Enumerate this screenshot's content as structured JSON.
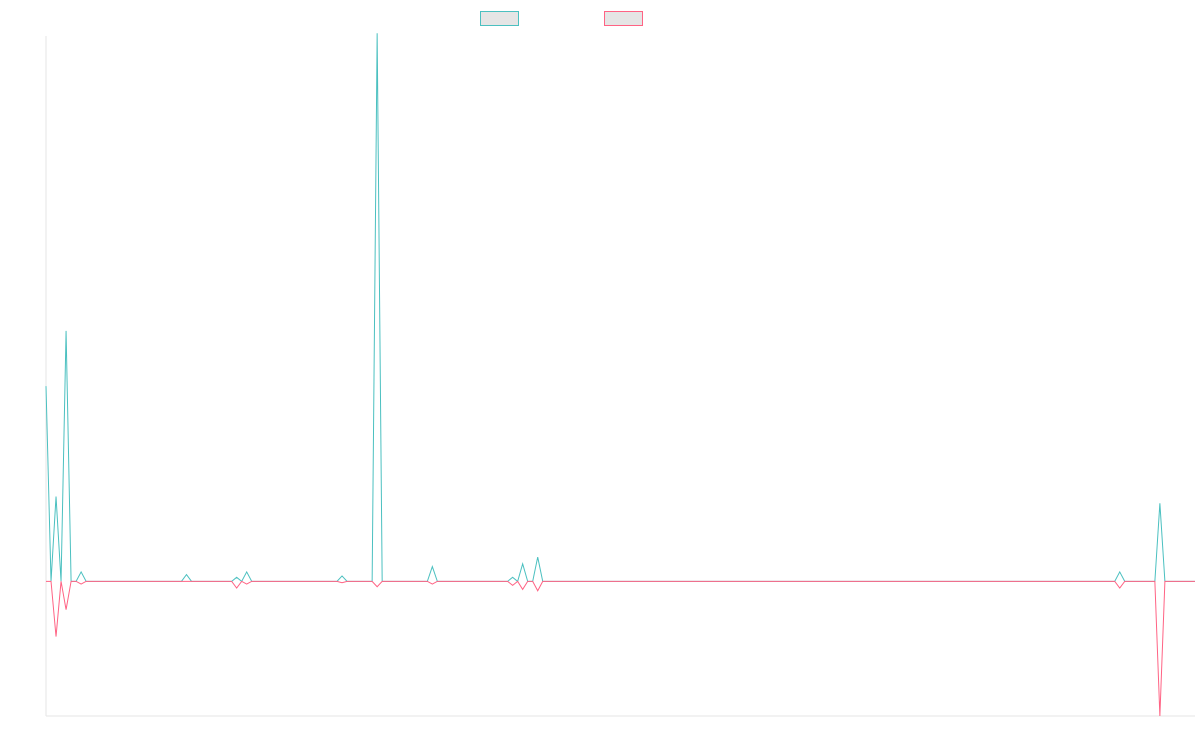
{
  "chart_data": {
    "type": "line",
    "title": "",
    "xlabel": "",
    "ylabel": "",
    "ylim": [
      -1.0,
      4.05
    ],
    "grid": false,
    "legend_position": "top-center",
    "series": [
      {
        "name": "",
        "color": "#4bc0c0",
        "values": [
          1.45,
          0,
          0.63,
          0,
          1.86,
          0,
          0,
          0.07,
          0,
          0,
          0,
          0,
          0,
          0,
          0,
          0,
          0,
          0,
          0,
          0,
          0,
          0,
          0,
          0,
          0,
          0,
          0,
          0,
          0.05,
          0,
          0,
          0,
          0,
          0,
          0,
          0,
          0,
          0,
          0.03,
          0,
          0.07,
          0,
          0,
          0,
          0,
          0,
          0,
          0,
          0,
          0,
          0,
          0,
          0,
          0,
          0,
          0,
          0,
          0,
          0,
          0.04,
          0,
          0,
          0,
          0,
          0,
          0,
          4.07,
          0,
          0,
          0,
          0,
          0,
          0,
          0,
          0,
          0,
          0,
          0.11,
          0,
          0,
          0,
          0,
          0,
          0,
          0,
          0,
          0,
          0,
          0,
          0,
          0,
          0,
          0,
          0.03,
          0,
          0.13,
          0,
          0,
          0.18,
          0,
          0,
          0,
          0,
          0,
          0,
          0,
          0,
          0,
          0,
          0,
          0,
          0,
          0,
          0,
          0,
          0,
          0,
          0,
          0,
          0,
          0,
          0,
          0,
          0,
          0,
          0,
          0,
          0,
          0,
          0,
          0,
          0,
          0,
          0,
          0,
          0,
          0,
          0,
          0,
          0,
          0,
          0,
          0,
          0,
          0,
          0,
          0,
          0,
          0,
          0,
          0,
          0,
          0,
          0,
          0,
          0,
          0,
          0,
          0,
          0,
          0,
          0,
          0,
          0,
          0,
          0,
          0,
          0,
          0,
          0,
          0,
          0,
          0,
          0,
          0,
          0,
          0,
          0,
          0,
          0,
          0,
          0,
          0,
          0,
          0,
          0,
          0,
          0,
          0,
          0,
          0,
          0,
          0,
          0,
          0,
          0,
          0,
          0,
          0,
          0,
          0,
          0,
          0,
          0,
          0,
          0,
          0,
          0,
          0,
          0,
          0,
          0,
          0,
          0,
          0.07,
          0,
          0,
          0,
          0,
          0,
          0,
          0,
          0.58,
          0,
          0,
          0,
          0,
          0,
          0,
          0
        ]
      },
      {
        "name": "",
        "color": "#ff6384",
        "values": [
          0,
          0,
          -0.41,
          0,
          -0.21,
          0,
          0,
          -0.02,
          0,
          0,
          0,
          0,
          0,
          0,
          0,
          0,
          0,
          0,
          0,
          0,
          0,
          0,
          0,
          0,
          0,
          0,
          0,
          0,
          0,
          0,
          0,
          0,
          0,
          0,
          0,
          0,
          0,
          0,
          -0.05,
          0,
          -0.02,
          0,
          0,
          0,
          0,
          0,
          0,
          0,
          0,
          0,
          0,
          0,
          0,
          0,
          0,
          0,
          0,
          0,
          0,
          -0.01,
          0,
          0,
          0,
          0,
          0,
          0,
          -0.04,
          0,
          0,
          0,
          0,
          0,
          0,
          0,
          0,
          0,
          0,
          -0.02,
          0,
          0,
          0,
          0,
          0,
          0,
          0,
          0,
          0,
          0,
          0,
          0,
          0,
          0,
          0,
          -0.03,
          0,
          -0.06,
          0,
          0,
          -0.07,
          0,
          0,
          0,
          0,
          0,
          0,
          0,
          0,
          0,
          0,
          0,
          0,
          0,
          0,
          0,
          0,
          0,
          0,
          0,
          0,
          0,
          0,
          0,
          0,
          0,
          0,
          0,
          0,
          0,
          0,
          0,
          0,
          0,
          0,
          0,
          0,
          0,
          0,
          0,
          0,
          0,
          0,
          0,
          0,
          0,
          0,
          0,
          0,
          0,
          0,
          0,
          0,
          0,
          0,
          0,
          0,
          0,
          0,
          0,
          0,
          0,
          0,
          0,
          0,
          0,
          0,
          0,
          0,
          0,
          0,
          0,
          0,
          0,
          0,
          0,
          0,
          0,
          0,
          0,
          0,
          0,
          0,
          0,
          0,
          0,
          0,
          0,
          0,
          0,
          0,
          0,
          0,
          0,
          0,
          0,
          0,
          0,
          0,
          0,
          0,
          0,
          0,
          0,
          0,
          0,
          0,
          0,
          0,
          0,
          0,
          0,
          0,
          0,
          0,
          0,
          -0.05,
          0,
          0,
          0,
          0,
          0,
          0,
          0,
          -1.0,
          0,
          0,
          0,
          0,
          0,
          0,
          0
        ]
      }
    ]
  }
}
